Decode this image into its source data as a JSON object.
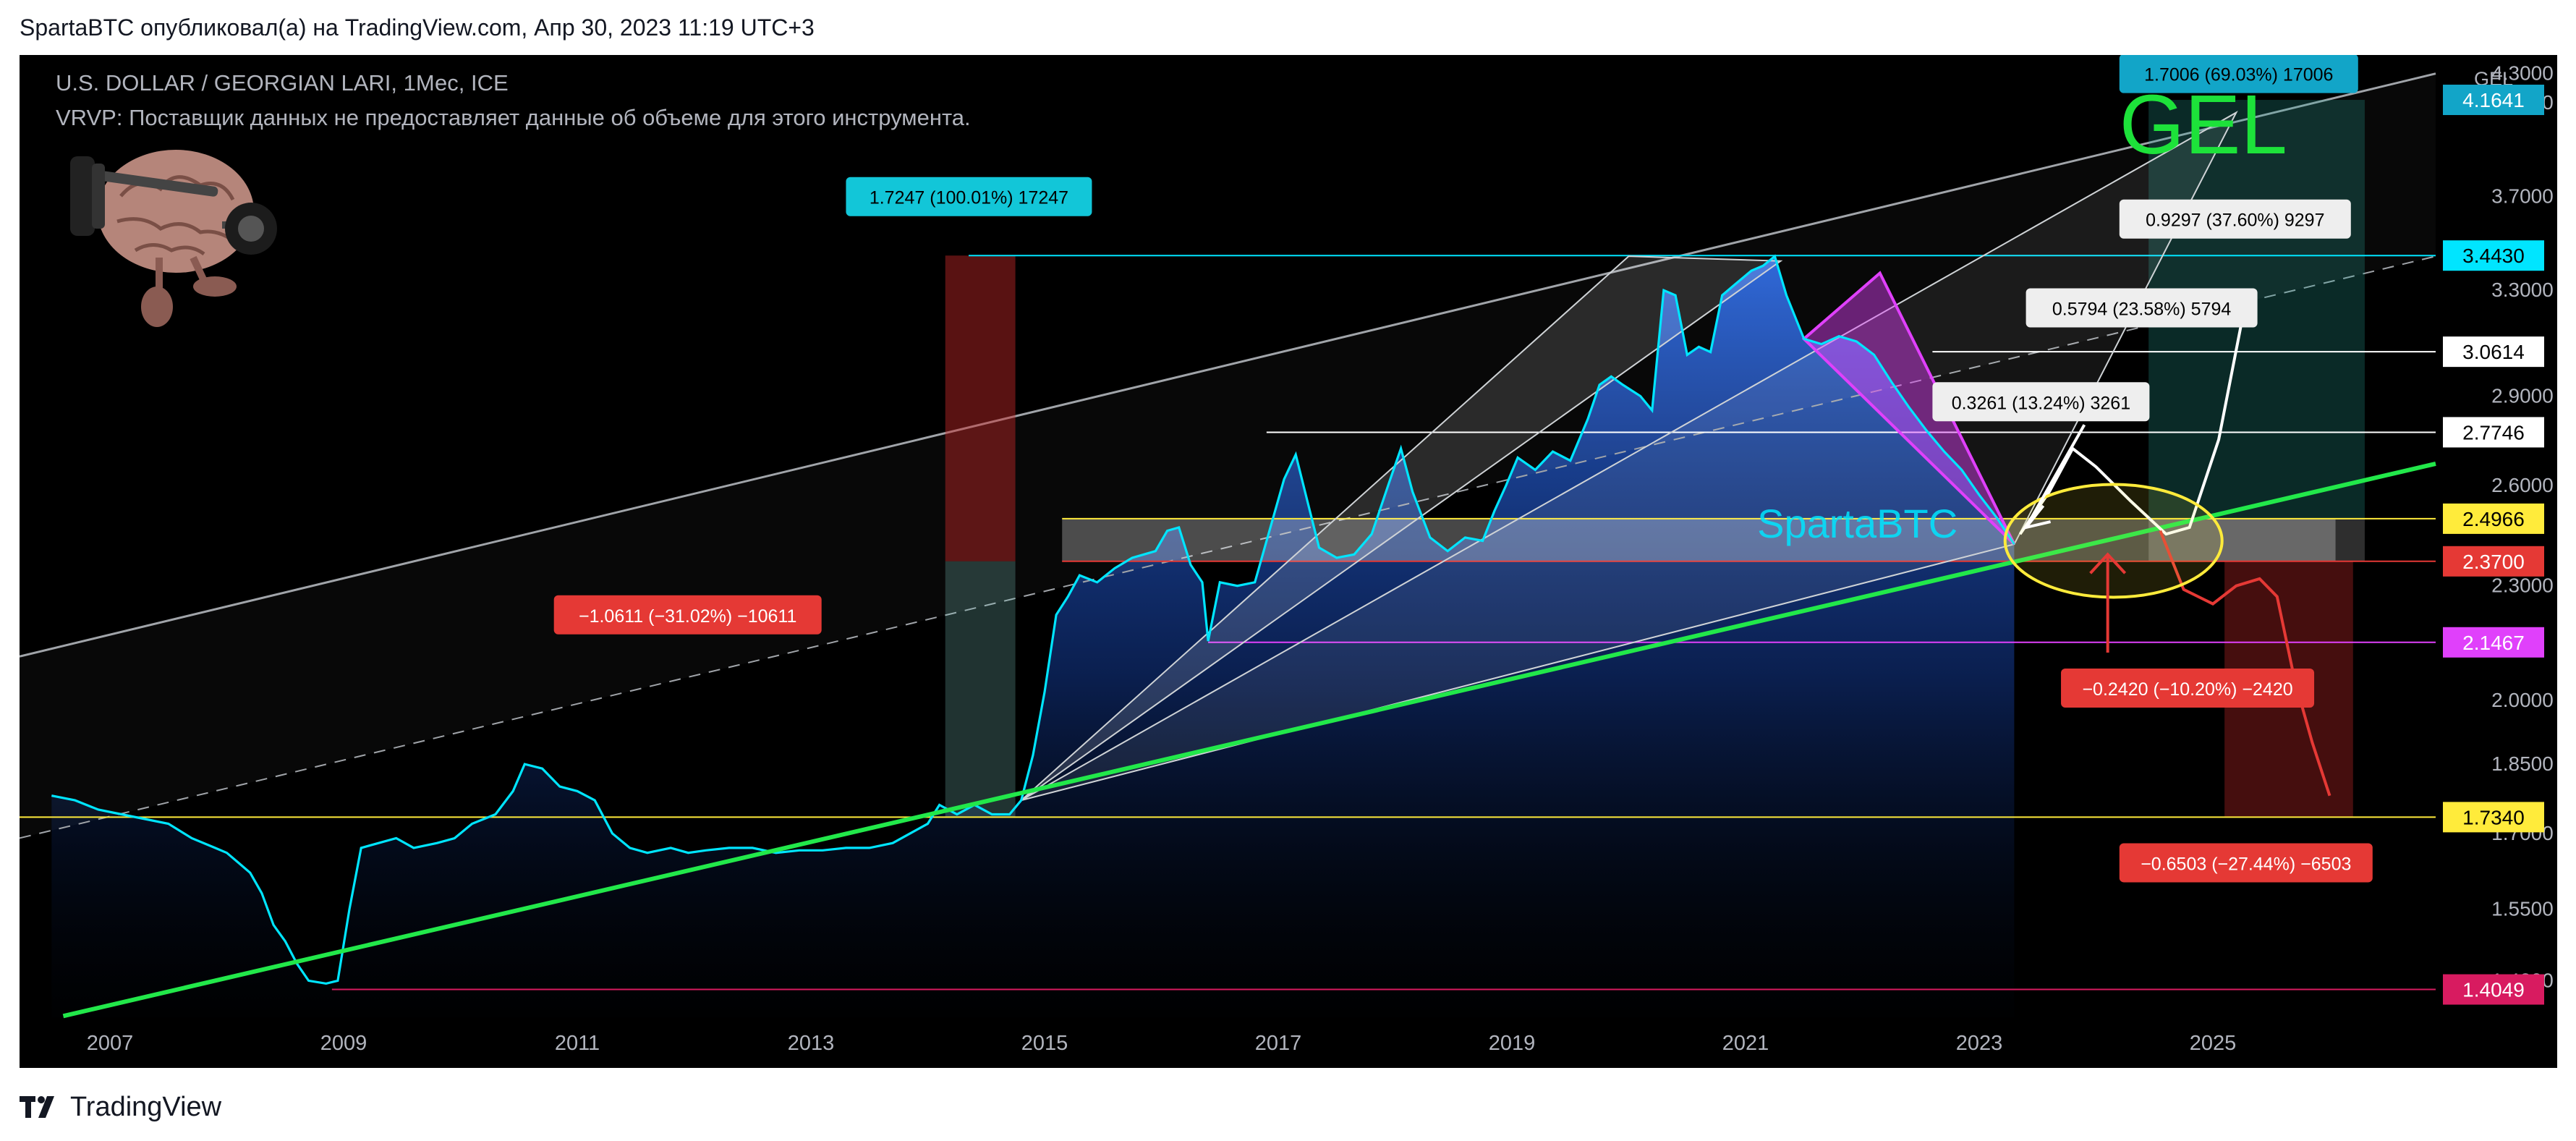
{
  "header": {
    "publish_line": "SpartaBTC опубликовал(а) на TradingView.com, Апр 30, 2023 11:19 UTC+3"
  },
  "legend": {
    "symbol_line": "U.S. DOLLAR / GEORGIAN LARI, 1Мес, ICE",
    "vrvp_line": "VRVP: Поставщик данных не предоставляет данные об объеме для этого инструмента."
  },
  "footer": {
    "brand": "TradingView"
  },
  "colors": {
    "background": "#000000",
    "price_line": "#00e5ff",
    "trend_support": "#22e84a",
    "channel_line": "#9fa3a8",
    "magenta": "#e040fb",
    "red_label": "#e53935",
    "cyan_label": "#12c6d8",
    "yellow_label": "#ffeb3b",
    "pink_label": "#d81b60",
    "gel_green": "#1de23a"
  },
  "chart_data": {
    "type": "line",
    "title": "U.S. DOLLAR / GEORGIAN LARI, 1Мес, ICE",
    "currency_label": "GEL",
    "watermark": "SpartaBTC",
    "big_label": "GEL",
    "x_ticks": [
      "2007",
      "2009",
      "2011",
      "2013",
      "2015",
      "2017",
      "2019",
      "2021",
      "2023",
      "2025"
    ],
    "y_ticks": [
      "4.3000",
      "4.1500",
      "3.7000",
      "3.3000",
      "2.9000",
      "2.6000",
      "2.3000",
      "2.0000",
      "1.8500",
      "1.7000",
      "1.5500",
      "1.4200"
    ],
    "ylim": [
      1.37,
      4.36
    ],
    "y_scale": "log",
    "series": [
      {
        "values": [
          [
            2006.5,
            1.78
          ],
          [
            2006.7,
            1.77
          ],
          [
            2006.9,
            1.75
          ],
          [
            2007.1,
            1.74
          ],
          [
            2007.3,
            1.73
          ],
          [
            2007.5,
            1.72
          ],
          [
            2007.7,
            1.69
          ],
          [
            2007.9,
            1.67
          ],
          [
            2008.0,
            1.66
          ],
          [
            2008.1,
            1.64
          ],
          [
            2008.2,
            1.62
          ],
          [
            2008.3,
            1.58
          ],
          [
            2008.4,
            1.52
          ],
          [
            2008.5,
            1.49
          ],
          [
            2008.6,
            1.45
          ],
          [
            2008.7,
            1.42
          ],
          [
            2008.85,
            1.415
          ],
          [
            2008.95,
            1.42
          ],
          [
            2009.05,
            1.55
          ],
          [
            2009.15,
            1.67
          ],
          [
            2009.3,
            1.68
          ],
          [
            2009.45,
            1.69
          ],
          [
            2009.6,
            1.67
          ],
          [
            2009.8,
            1.68
          ],
          [
            2009.95,
            1.69
          ],
          [
            2010.1,
            1.72
          ],
          [
            2010.3,
            1.74
          ],
          [
            2010.45,
            1.79
          ],
          [
            2010.55,
            1.85
          ],
          [
            2010.7,
            1.84
          ],
          [
            2010.85,
            1.8
          ],
          [
            2011.0,
            1.79
          ],
          [
            2011.15,
            1.77
          ],
          [
            2011.3,
            1.7
          ],
          [
            2011.45,
            1.67
          ],
          [
            2011.6,
            1.66
          ],
          [
            2011.8,
            1.67
          ],
          [
            2011.95,
            1.66
          ],
          [
            2012.1,
            1.665
          ],
          [
            2012.3,
            1.67
          ],
          [
            2012.5,
            1.67
          ],
          [
            2012.7,
            1.66
          ],
          [
            2012.9,
            1.665
          ],
          [
            2013.1,
            1.665
          ],
          [
            2013.3,
            1.67
          ],
          [
            2013.5,
            1.67
          ],
          [
            2013.7,
            1.68
          ],
          [
            2013.85,
            1.7
          ],
          [
            2014.0,
            1.72
          ],
          [
            2014.1,
            1.76
          ],
          [
            2014.25,
            1.74
          ],
          [
            2014.4,
            1.76
          ],
          [
            2014.55,
            1.74
          ],
          [
            2014.7,
            1.74
          ],
          [
            2014.8,
            1.77
          ],
          [
            2014.9,
            1.87
          ],
          [
            2015.0,
            2.02
          ],
          [
            2015.1,
            2.22
          ],
          [
            2015.2,
            2.27
          ],
          [
            2015.3,
            2.33
          ],
          [
            2015.45,
            2.31
          ],
          [
            2015.6,
            2.35
          ],
          [
            2015.75,
            2.38
          ],
          [
            2015.85,
            2.39
          ],
          [
            2015.95,
            2.4
          ],
          [
            2016.05,
            2.46
          ],
          [
            2016.15,
            2.47
          ],
          [
            2016.25,
            2.36
          ],
          [
            2016.35,
            2.31
          ],
          [
            2016.4,
            2.15
          ],
          [
            2016.5,
            2.31
          ],
          [
            2016.65,
            2.3
          ],
          [
            2016.8,
            2.31
          ],
          [
            2016.9,
            2.43
          ],
          [
            2017.05,
            2.62
          ],
          [
            2017.15,
            2.7
          ],
          [
            2017.25,
            2.55
          ],
          [
            2017.35,
            2.41
          ],
          [
            2017.5,
            2.38
          ],
          [
            2017.65,
            2.39
          ],
          [
            2017.8,
            2.45
          ],
          [
            2017.95,
            2.61
          ],
          [
            2018.05,
            2.72
          ],
          [
            2018.15,
            2.58
          ],
          [
            2018.3,
            2.44
          ],
          [
            2018.45,
            2.4
          ],
          [
            2018.6,
            2.44
          ],
          [
            2018.75,
            2.43
          ],
          [
            2018.85,
            2.52
          ],
          [
            2018.95,
            2.6
          ],
          [
            2019.05,
            2.69
          ],
          [
            2019.2,
            2.65
          ],
          [
            2019.35,
            2.71
          ],
          [
            2019.5,
            2.68
          ],
          [
            2019.65,
            2.82
          ],
          [
            2019.75,
            2.94
          ],
          [
            2019.85,
            2.97
          ],
          [
            2019.95,
            2.94
          ],
          [
            2020.1,
            2.9
          ],
          [
            2020.2,
            2.85
          ],
          [
            2020.3,
            3.3
          ],
          [
            2020.4,
            3.28
          ],
          [
            2020.5,
            3.05
          ],
          [
            2020.6,
            3.08
          ],
          [
            2020.7,
            3.06
          ],
          [
            2020.8,
            3.28
          ],
          [
            2020.9,
            3.32
          ],
          [
            2021.05,
            3.38
          ],
          [
            2021.15,
            3.4
          ],
          [
            2021.25,
            3.44
          ],
          [
            2021.35,
            3.28
          ],
          [
            2021.5,
            3.11
          ],
          [
            2021.65,
            3.09
          ],
          [
            2021.8,
            3.12
          ],
          [
            2021.95,
            3.1
          ],
          [
            2022.1,
            3.05
          ],
          [
            2022.25,
            2.95
          ],
          [
            2022.4,
            2.86
          ],
          [
            2022.55,
            2.78
          ],
          [
            2022.7,
            2.71
          ],
          [
            2022.85,
            2.65
          ],
          [
            2023.0,
            2.57
          ],
          [
            2023.15,
            2.5
          ],
          [
            2023.3,
            2.42
          ]
        ]
      }
    ],
    "projection_path": {
      "white": [
        [
          2023.35,
          2.45
        ],
        [
          2023.6,
          2.58
        ],
        [
          2023.8,
          2.72
        ],
        [
          2024.0,
          2.66
        ],
        [
          2024.3,
          2.55
        ],
        [
          2024.6,
          2.45
        ],
        [
          2024.8,
          2.47
        ],
        [
          2025.05,
          2.75
        ],
        [
          2025.3,
          3.3
        ]
      ],
      "red": [
        [
          2024.55,
          2.46
        ],
        [
          2024.75,
          2.29
        ],
        [
          2025.0,
          2.25
        ],
        [
          2025.2,
          2.3
        ],
        [
          2025.4,
          2.32
        ],
        [
          2025.55,
          2.27
        ],
        [
          2025.7,
          2.05
        ],
        [
          2025.85,
          1.9
        ],
        [
          2026.0,
          1.78
        ]
      ]
    },
    "price_labels": [
      {
        "value": 4.1641,
        "text": "4.1641",
        "bg": "#12a5c8",
        "fg": "#ffffff"
      },
      {
        "value": 3.443,
        "text": "3.4430",
        "bg": "#00e5ff",
        "fg": "#000000"
      },
      {
        "value": 3.0614,
        "text": "3.0614",
        "bg": "#ffffff",
        "fg": "#000000"
      },
      {
        "value": 2.7746,
        "text": "2.7746",
        "bg": "#ffffff",
        "fg": "#000000"
      },
      {
        "value": 2.4966,
        "text": "2.4966",
        "bg": "#ffeb3b",
        "fg": "#000000"
      },
      {
        "value": 2.37,
        "text": "2.3700",
        "bg": "#e53935",
        "fg": "#ffffff"
      },
      {
        "value": 2.1467,
        "text": "2.1467",
        "bg": "#e040fb",
        "fg": "#ffffff"
      },
      {
        "value": 1.734,
        "text": "1.7340",
        "bg": "#ffeb3b",
        "fg": "#000000"
      },
      {
        "value": 1.4049,
        "text": "1.4049",
        "bg": "#d81b60",
        "fg": "#ffffff"
      }
    ],
    "annotations": [
      {
        "text": "1.7247 (100.01%) 17247",
        "bg": "#12c6d8",
        "fg": "#000000"
      },
      {
        "text": "−1.0611 (−31.02%) −10611",
        "bg": "#e53935",
        "fg": "#ffffff"
      },
      {
        "text": "1.7006 (69.03%) 17006",
        "bg": "#12a5c8",
        "fg": "#000000"
      },
      {
        "text": "0.9297 (37.60%) 9297",
        "bg": "#eeeeee",
        "fg": "#000000"
      },
      {
        "text": "0.5794 (23.58%) 5794",
        "bg": "#eeeeee",
        "fg": "#000000"
      },
      {
        "text": "0.3261 (13.24%) 3261",
        "bg": "#eeeeee",
        "fg": "#000000"
      },
      {
        "text": "−0.2420 (−10.20%) −2420",
        "bg": "#e53935",
        "fg": "#ffffff"
      },
      {
        "text": "−0.6503 (−27.44%) −6503",
        "bg": "#e53935",
        "fg": "#ffffff"
      }
    ]
  }
}
